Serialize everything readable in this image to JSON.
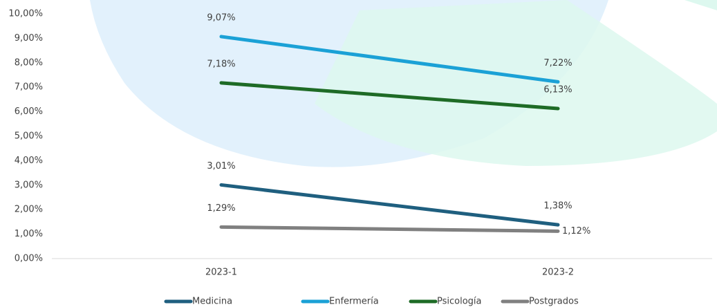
{
  "chart_data": {
    "type": "line",
    "categories": [
      "2023-1",
      "2023-2"
    ],
    "series": [
      {
        "name": "Medicina",
        "color": "#1f5f7f",
        "values": [
          3.01,
          1.38
        ],
        "value_labels": [
          "3,01%",
          "1,38%"
        ]
      },
      {
        "name": "Enfermería",
        "color": "#1ba1d6",
        "values": [
          9.07,
          7.22
        ],
        "value_labels": [
          "9,07%",
          "7,22%"
        ]
      },
      {
        "name": "Psicología",
        "color": "#1e6b26",
        "values": [
          7.18,
          6.13
        ],
        "value_labels": [
          "7,18%",
          "6,13%"
        ]
      },
      {
        "name": "Postgrados",
        "color": "#808080",
        "values": [
          1.29,
          1.12
        ],
        "value_labels": [
          "1,29%",
          "1,12%"
        ]
      }
    ],
    "ylim": [
      0,
      10
    ],
    "yticks": [
      {
        "value": 0,
        "label": "0,00%"
      },
      {
        "value": 1,
        "label": "1,00%"
      },
      {
        "value": 2,
        "label": "2,00%"
      },
      {
        "value": 3,
        "label": "3,00%"
      },
      {
        "value": 4,
        "label": "4,00%"
      },
      {
        "value": 5,
        "label": "5,00%"
      },
      {
        "value": 6,
        "label": "6,00%"
      },
      {
        "value": 7,
        "label": "7,00%"
      },
      {
        "value": 8,
        "label": "8,00%"
      },
      {
        "value": 9,
        "label": "9,00%"
      },
      {
        "value": 10,
        "label": "10,00%"
      }
    ],
    "legend": "bottom"
  }
}
